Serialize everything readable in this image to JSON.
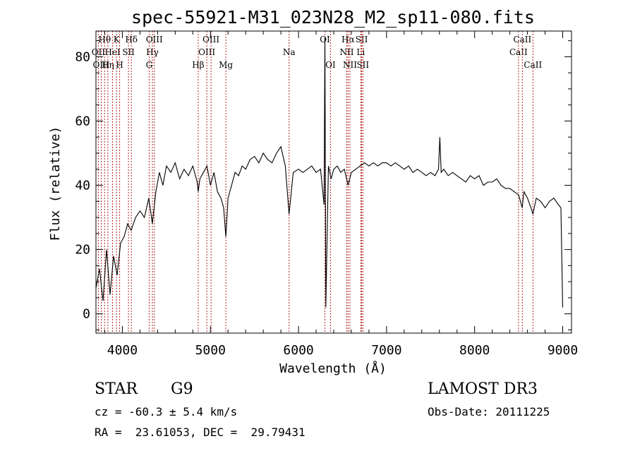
{
  "chart_data": {
    "type": "line",
    "title": "spec-55921-M31_023N28_M2_sp11-080.fits",
    "xlabel": "Wavelength (Å)",
    "ylabel": "Flux (relative)",
    "xlim": [
      3700,
      9100
    ],
    "ylim": [
      -6,
      88
    ],
    "xticks": [
      4000,
      5000,
      6000,
      7000,
      8000,
      9000
    ],
    "yticks": [
      0,
      20,
      40,
      60,
      80
    ],
    "grid": false,
    "legend": "none",
    "series": [
      {
        "x": [
          3700,
          3740,
          3780,
          3820,
          3860,
          3900,
          3940,
          3980,
          4020,
          4060,
          4100,
          4150,
          4200,
          4250,
          4300,
          4340,
          4380,
          4420,
          4460,
          4500,
          4550,
          4600,
          4650,
          4700,
          4750,
          4800,
          4850,
          4861,
          4880,
          4920,
          4960,
          5000,
          5040,
          5080,
          5120,
          5150,
          5175,
          5200,
          5240,
          5280,
          5320,
          5360,
          5400,
          5450,
          5500,
          5550,
          5600,
          5650,
          5700,
          5750,
          5800,
          5850,
          5893,
          5940,
          6000,
          6050,
          6100,
          6150,
          6200,
          6250,
          6290,
          6300,
          6310,
          6340,
          6370,
          6400,
          6440,
          6480,
          6520,
          6563,
          6600,
          6650,
          6700,
          6750,
          6800,
          6850,
          6900,
          6950,
          7000,
          7050,
          7100,
          7150,
          7200,
          7250,
          7300,
          7350,
          7400,
          7450,
          7500,
          7550,
          7590,
          7605,
          7620,
          7650,
          7700,
          7750,
          7800,
          7850,
          7900,
          7950,
          8000,
          8050,
          8100,
          8150,
          8200,
          8250,
          8300,
          8350,
          8400,
          8450,
          8500,
          8540,
          8560,
          8600,
          8640,
          8662,
          8700,
          8750,
          8800,
          8850,
          8900,
          8950,
          8980,
          9000
        ],
        "y": [
          8,
          14,
          4,
          20,
          6,
          18,
          12,
          22,
          24,
          28,
          26,
          30,
          32,
          30,
          36,
          28,
          38,
          44,
          40,
          46,
          44,
          47,
          42,
          45,
          43,
          46,
          41,
          38,
          42,
          44,
          46,
          40,
          44,
          38,
          36,
          33,
          24,
          36,
          40,
          44,
          43,
          46,
          45,
          48,
          49,
          47,
          50,
          48,
          47,
          50,
          52,
          46,
          31,
          44,
          45,
          44,
          45,
          46,
          44,
          45,
          34,
          86,
          2,
          46,
          42,
          45,
          46,
          44,
          45,
          40,
          44,
          45,
          46,
          47,
          46,
          47,
          46,
          47,
          47,
          46,
          47,
          46,
          45,
          46,
          44,
          45,
          44,
          43,
          44,
          43,
          45,
          55,
          44,
          45,
          43,
          44,
          43,
          42,
          41,
          43,
          42,
          43,
          40,
          41,
          41,
          42,
          40,
          39,
          39,
          38,
          37,
          33,
          38,
          36,
          33,
          31,
          36,
          35,
          33,
          35,
          36,
          34,
          33,
          2
        ]
      }
    ],
    "lines": [
      {
        "label": "Hθ",
        "x": 3798,
        "row": 0
      },
      {
        "label": "OII",
        "x": 3727,
        "row": 1
      },
      {
        "label": "OIII",
        "x": 3760,
        "row": 2
      },
      {
        "label": "Hη",
        "x": 3835,
        "row": 2
      },
      {
        "label": "HeI",
        "x": 3889,
        "row": 1
      },
      {
        "label": "K",
        "x": 3934,
        "row": 0
      },
      {
        "label": "H",
        "x": 3969,
        "row": 2
      },
      {
        "label": "SII",
        "x": 4069,
        "row": 1
      },
      {
        "label": "Hδ",
        "x": 4102,
        "row": 0
      },
      {
        "label": "G",
        "x": 4304,
        "row": 2
      },
      {
        "label": "Hγ",
        "x": 4341,
        "row": 1
      },
      {
        "label": "OIII",
        "x": 4363,
        "row": 0
      },
      {
        "label": "Hβ",
        "x": 4861,
        "row": 2
      },
      {
        "label": "OIII",
        "x": 4959,
        "row": 1
      },
      {
        "label": "OIII",
        "x": 5007,
        "row": 0
      },
      {
        "label": "Mg",
        "x": 5175,
        "row": 2
      },
      {
        "label": "Na",
        "x": 5893,
        "row": 1
      },
      {
        "label": "OI",
        "x": 6300,
        "row": 0
      },
      {
        "label": "OI",
        "x": 6363,
        "row": 2
      },
      {
        "label": "NII",
        "x": 6548,
        "row": 1
      },
      {
        "label": "Hα",
        "x": 6563,
        "row": 0
      },
      {
        "label": "NII",
        "x": 6584,
        "row": 2
      },
      {
        "label": "SII",
        "x": 6717,
        "row": 0
      },
      {
        "label": "Li",
        "x": 6707,
        "row": 1
      },
      {
        "label": "SII",
        "x": 6731,
        "row": 2
      },
      {
        "label": "CaII",
        "x": 8498,
        "row": 1
      },
      {
        "label": "CaII",
        "x": 8542,
        "row": 0
      },
      {
        "label": "CaII",
        "x": 8662,
        "row": 2
      }
    ]
  },
  "info": {
    "class": "STAR",
    "subclass": "G9",
    "survey": "LAMOST DR3",
    "cz": "cz = -60.3 ± 5.4 km/s",
    "obs_date": "Obs-Date: 20111225",
    "radec": "RA =  23.61053, DEC =  29.79431"
  }
}
